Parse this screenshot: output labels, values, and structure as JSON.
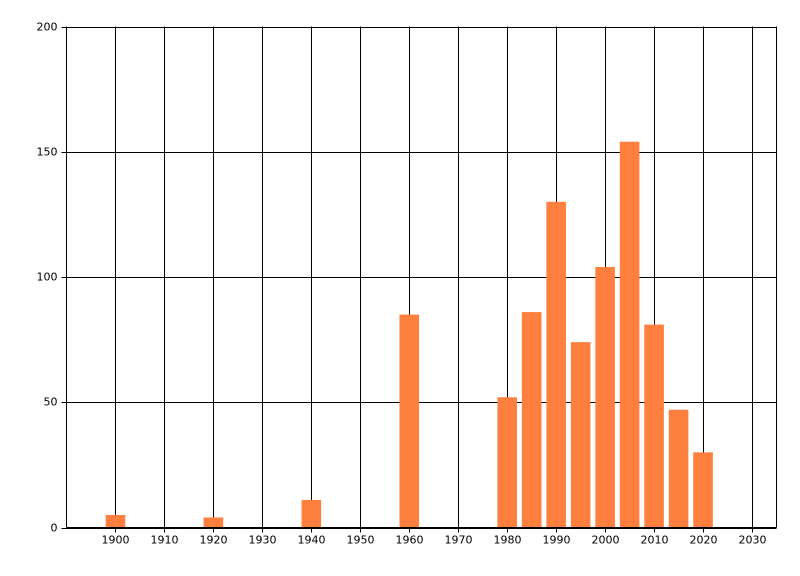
{
  "chart_data": {
    "type": "bar",
    "x": [
      1900,
      1920,
      1940,
      1960,
      1980,
      1985,
      1990,
      1995,
      2000,
      2005,
      2010,
      2015,
      2020
    ],
    "values": [
      5,
      4,
      11,
      85,
      52,
      86,
      130,
      74,
      104,
      154,
      81,
      47,
      30
    ],
    "color": "#ff7f3f",
    "xlim": [
      1890,
      2035
    ],
    "xticks": [
      1900,
      1910,
      1920,
      1930,
      1940,
      1950,
      1960,
      1970,
      1980,
      1990,
      2000,
      2010,
      2020,
      2030
    ],
    "ylim": [
      0,
      200
    ],
    "yticks": [
      0,
      50,
      100,
      150,
      200
    ],
    "grid": true
  }
}
